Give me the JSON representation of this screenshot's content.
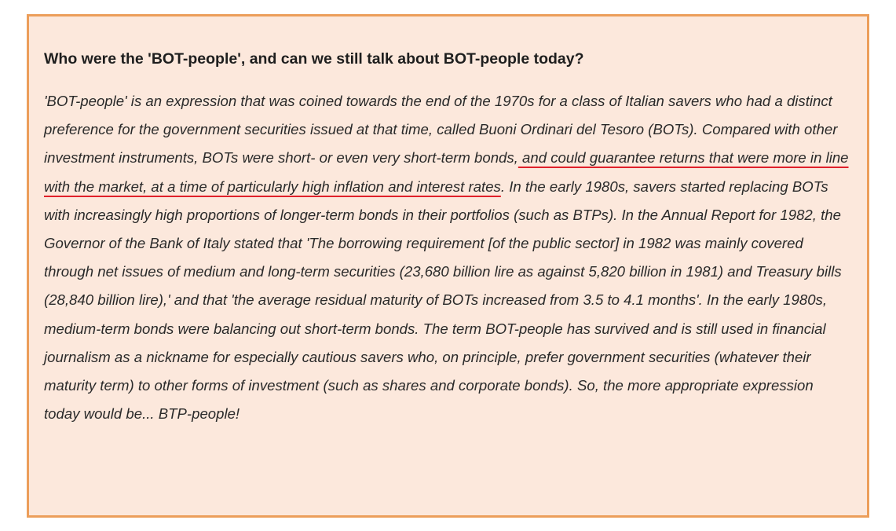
{
  "box": {
    "title": "Who were the 'BOT-people', and can we still talk about BOT-people today?",
    "paragraph": {
      "before": "'BOT-people' is an expression that was coined towards the end of the 1970s for a class of Italian savers who had a distinct preference for the government securities issued at that time, called Buoni Ordinari del Tesoro (BOTs). Compared with other investment instruments, BOTs were short- or even very short-term bonds,",
      "underlined": " and could guarantee returns that were more in line with the market, at a time of particularly high inflation and interest rates",
      "after": ". In the early 1980s, savers started replacing BOTs with increasingly high proportions of longer-term bonds in their portfolios (such as BTPs). In the Annual Report for 1982, the Governor of the Bank of Italy stated that 'The borrowing requirement [of the public sector] in 1982 was mainly covered through net issues of medium and long-term securities (23,680 billion lire as against 5,820 billion in 1981) and Treasury bills (28,840 billion lire),' and that 'the average residual maturity of BOTs increased from 3.5 to 4.1 months'. In the early 1980s, medium-term bonds were balancing out short-term bonds. The term BOT-people has survived and is still used in financial journalism as a nickname for especially cautious savers who, on principle, prefer government securities (whatever their maturity term) to other forms of investment (such as shares and corporate bonds). So, the more appropriate expression today would be... BTP-people!"
    }
  }
}
